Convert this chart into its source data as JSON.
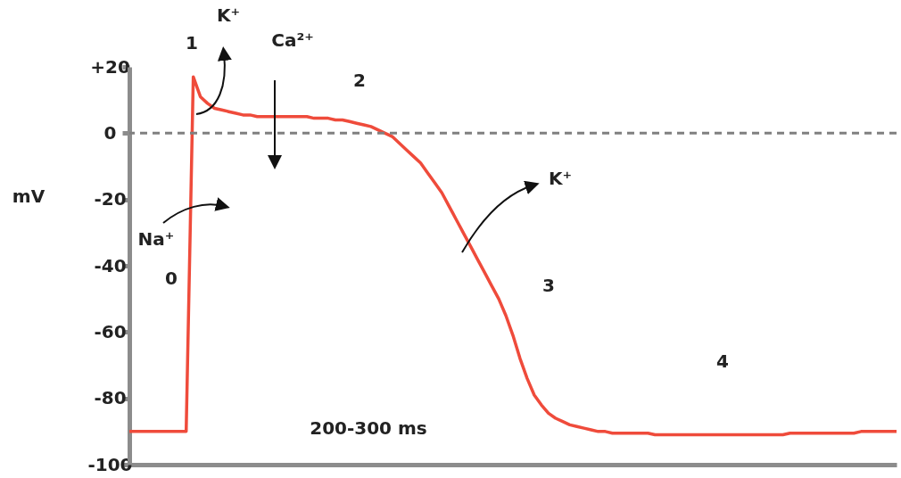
{
  "chart_data": {
    "type": "line",
    "ylabel": "mV",
    "categories": [
      null,
      null,
      null,
      null,
      null,
      null,
      null,
      null,
      null,
      null,
      null,
      null,
      null,
      null,
      null,
      null,
      null,
      null,
      null,
      null,
      null,
      null,
      null,
      null,
      null,
      null,
      null,
      null,
      null,
      null,
      null,
      null,
      null,
      null,
      null,
      null,
      null,
      null,
      null,
      null,
      null,
      null,
      null,
      null,
      null,
      null,
      null,
      null,
      null,
      null,
      null,
      null,
      null,
      null,
      null,
      null,
      null,
      null,
      null,
      null,
      null,
      null,
      null,
      null,
      null,
      null,
      null,
      null,
      null,
      null,
      null,
      null,
      null,
      null,
      null,
      null,
      null,
      null,
      null,
      null,
      null,
      null,
      null,
      null,
      null,
      null,
      null,
      null,
      null,
      null,
      null,
      null,
      null,
      null,
      null,
      null,
      null,
      null,
      null,
      null,
      null,
      null,
      null,
      null,
      null,
      null,
      null,
      null,
      null
    ],
    "series": [
      {
        "color": "#ef4b3b",
        "values": [
          -90,
          -90,
          -90,
          -90,
          -90,
          -90,
          -90,
          -90,
          -90,
          17,
          11,
          9,
          7.5,
          7,
          6.5,
          6,
          5.5,
          5.5,
          5,
          5,
          5,
          5,
          5,
          5,
          5,
          5,
          4.5,
          4.5,
          4.5,
          4,
          4,
          3.5,
          3,
          2.5,
          2,
          1,
          0,
          -1,
          -3,
          -5,
          -7,
          -9,
          -12,
          -15,
          -18,
          -22,
          -26,
          -30,
          -34,
          -38,
          -42,
          -46,
          -50,
          -55,
          -61,
          -68,
          -74,
          -79,
          -82,
          -84.5,
          -86,
          -87,
          -88,
          -88.5,
          -89,
          -89.5,
          -90,
          -90,
          -90.5,
          -90.5,
          -90.5,
          -90.5,
          -90.5,
          -90.5,
          -91,
          -91,
          -91,
          -91,
          -91,
          -91,
          -91,
          -91,
          -91,
          -91,
          -91,
          -91,
          -91,
          -91,
          -91,
          -91,
          -91,
          -91,
          -91,
          -90.5,
          -90.5,
          -90.5,
          -90.5,
          -90.5,
          -90.5,
          -90.5,
          -90.5,
          -90.5,
          -90.5,
          -90,
          -90,
          -90,
          -90,
          -90,
          -90
        ]
      }
    ],
    "ylim": [
      -100,
      20
    ],
    "yticks": [
      {
        "value": 20,
        "label": "+20"
      },
      0,
      -20,
      -40,
      -60,
      -80,
      -100
    ],
    "tick_labels": "y",
    "grid": false,
    "marker": "none",
    "line_style": "solid",
    "ref_lines": [
      {
        "axis": "y",
        "value": 0,
        "color": "#808080",
        "line_style": "dashed"
      }
    ],
    "annotations": [
      "1",
      "K⁺",
      "Ca²⁺",
      "2",
      "K⁺",
      "Na⁺",
      "0",
      "3",
      "4",
      "200-300 ms"
    ]
  }
}
